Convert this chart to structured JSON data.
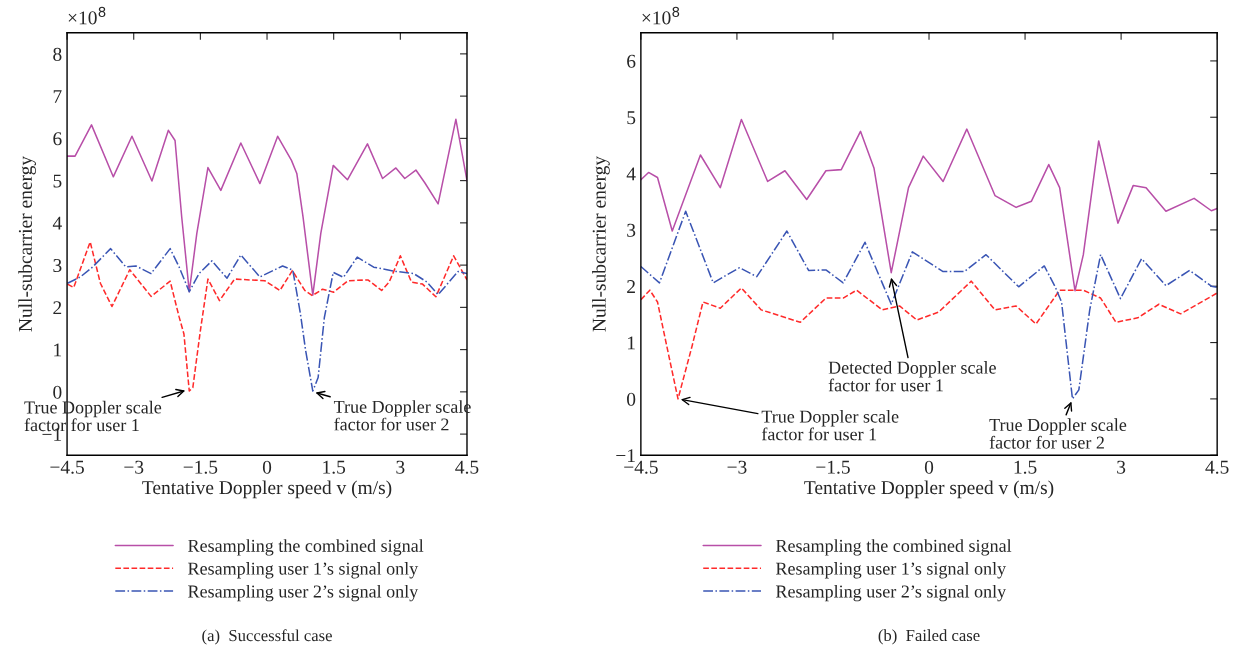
{
  "chart_data": [
    {
      "type": "line",
      "xlabel": "Tentative Doppler speed v (m/s)",
      "ylabel": "Null-subcarrier energy",
      "xlim": [
        -4.5,
        4.5
      ],
      "xticks": [
        -4.5,
        -3,
        -1.5,
        0,
        1.5,
        3,
        4.5
      ],
      "ylim": [
        -1.5,
        8.5
      ],
      "yticks": [
        -1,
        0,
        1,
        2,
        3,
        4,
        5,
        6,
        7,
        8
      ],
      "legend": "bottom",
      "grid": false,
      "annotations": [
        "×10$^{8}$",
        {
          "text": "True Doppler scale\nfactor for user 1",
          "x": -1.78,
          "y": 0.05
        },
        {
          "text": "True Doppler scale\nfactor for user 2",
          "x": 1.03,
          "y": 0.0
        },
        "(a)  Successful case"
      ],
      "series": [
        {
          "name": "Resampling the combined signal",
          "color": "#b84fa8",
          "line_style": "solid",
          "x": [
            -4.49,
            -4.32,
            -3.95,
            -3.46,
            -3.04,
            -2.59,
            -2.22,
            -2.07,
            -1.92,
            -1.75,
            -1.58,
            -1.33,
            -1.04,
            -0.59,
            -0.16,
            0.24,
            0.55,
            0.67,
            0.81,
            1.03,
            1.21,
            1.49,
            1.81,
            2.26,
            2.6,
            2.9,
            3.1,
            3.35,
            3.55,
            3.85,
            4.25,
            4.5
          ],
          "values": [
            5.58,
            5.58,
            6.32,
            5.09,
            6.05,
            4.99,
            6.19,
            5.95,
            4.14,
            2.37,
            3.75,
            5.31,
            4.77,
            5.89,
            4.93,
            6.05,
            5.48,
            5.17,
            4.14,
            2.29,
            3.75,
            5.36,
            5.02,
            5.87,
            5.05,
            5.3,
            5.05,
            5.25,
            4.95,
            4.45,
            6.45,
            5.0
          ]
        },
        {
          "name": "Resampling user 1’s signal only",
          "color": "#ff2a2a",
          "line_style": "dashed",
          "x": [
            -4.49,
            -4.35,
            -3.98,
            -3.75,
            -3.49,
            -3.09,
            -2.61,
            -2.18,
            -1.98,
            -1.87,
            -1.75,
            -1.67,
            -1.5,
            -1.33,
            -1.07,
            -0.73,
            -0.05,
            0.29,
            0.57,
            0.85,
            1.02,
            1.25,
            1.5,
            1.82,
            2.27,
            2.58,
            2.75,
            3.0,
            3.25,
            3.5,
            3.8,
            4.2,
            4.5
          ],
          "values": [
            2.55,
            2.47,
            3.55,
            2.57,
            2.02,
            2.89,
            2.26,
            2.62,
            1.78,
            1.37,
            0.02,
            0.1,
            1.45,
            2.67,
            2.16,
            2.67,
            2.63,
            2.4,
            2.87,
            2.4,
            2.28,
            2.43,
            2.36,
            2.63,
            2.65,
            2.4,
            2.6,
            3.22,
            2.6,
            2.55,
            2.25,
            3.22,
            2.65
          ]
        },
        {
          "name": "Resampling user 2’s signal only",
          "color": "#3a55b4",
          "line_style": "dashdot",
          "x": [
            -4.49,
            -4.2,
            -3.92,
            -3.52,
            -3.18,
            -2.95,
            -2.61,
            -2.18,
            -1.98,
            -1.75,
            -1.53,
            -1.24,
            -0.9,
            -0.59,
            -0.16,
            0.35,
            0.58,
            0.75,
            0.87,
            1.03,
            1.15,
            1.29,
            1.49,
            1.72,
            2.03,
            2.4,
            2.9,
            3.3,
            3.6,
            3.85,
            4.3,
            4.5
          ],
          "values": [
            2.57,
            2.72,
            2.96,
            3.39,
            2.96,
            2.98,
            2.8,
            3.39,
            2.96,
            2.37,
            2.8,
            3.1,
            2.69,
            3.24,
            2.72,
            2.98,
            2.88,
            1.86,
            0.97,
            0.02,
            0.34,
            1.76,
            2.83,
            2.71,
            3.19,
            2.95,
            2.85,
            2.8,
            2.6,
            2.3,
            2.85,
            2.8
          ]
        }
      ]
    },
    {
      "type": "line",
      "xlabel": "Tentative Doppler speed v (m/s)",
      "ylabel": "Null-subcarrier energy",
      "xlim": [
        -4.5,
        4.5
      ],
      "xticks": [
        -4.5,
        -3,
        -1.5,
        0,
        1.5,
        3,
        4.5
      ],
      "ylim": [
        -1,
        6.5
      ],
      "yticks": [
        -1,
        0,
        1,
        2,
        3,
        4,
        5,
        6
      ],
      "legend": "bottom",
      "grid": false,
      "annotations": [
        "×10$^{8}$",
        {
          "text": "True Doppler scale\nfactor for user 1",
          "x": -3.92,
          "y": 0.0
        },
        {
          "text": "True Doppler scale\nfactor for user 2",
          "x": 2.24,
          "y": 0.0
        },
        {
          "text": "Detected Doppler scale\nfactor for user 1",
          "x": -0.6,
          "y": 2.2
        },
        "(b)  Failed case"
      ],
      "series": [
        {
          "name": "Resampling the combined signal",
          "color": "#b84fa8",
          "line_style": "solid",
          "x": [
            -4.5,
            -4.38,
            -4.24,
            -4.01,
            -3.57,
            -3.26,
            -2.93,
            -2.52,
            -2.25,
            -1.91,
            -1.61,
            -1.37,
            -1.07,
            -0.86,
            -0.59,
            -0.32,
            -0.09,
            0.22,
            0.59,
            1.03,
            1.36,
            1.6,
            1.87,
            2.04,
            2.28,
            2.41,
            2.65,
            2.95,
            3.19,
            3.39,
            3.7,
            4.14,
            4.41,
            4.5
          ],
          "values": [
            3.89,
            4.02,
            3.93,
            2.98,
            4.33,
            3.75,
            4.96,
            3.86,
            4.05,
            3.54,
            4.05,
            4.07,
            4.75,
            4.1,
            2.24,
            3.75,
            4.31,
            3.86,
            4.79,
            3.61,
            3.4,
            3.51,
            4.16,
            3.75,
            1.92,
            2.56,
            4.58,
            3.12,
            3.79,
            3.75,
            3.33,
            3.56,
            3.34,
            3.38
          ]
        },
        {
          "name": "Resampling user 1’s signal only",
          "color": "#ff2a2a",
          "line_style": "dashed",
          "x": [
            -4.5,
            -4.36,
            -4.24,
            -4.07,
            -3.92,
            -3.7,
            -3.53,
            -3.26,
            -2.93,
            -2.62,
            -2.01,
            -1.61,
            -1.34,
            -1.13,
            -0.73,
            -0.46,
            -0.19,
            0.15,
            0.66,
            1.03,
            1.36,
            1.67,
            2.04,
            2.41,
            2.68,
            2.92,
            3.26,
            3.59,
            3.93,
            4.5
          ],
          "values": [
            1.76,
            1.93,
            1.72,
            0.8,
            0.0,
            0.94,
            1.72,
            1.61,
            1.97,
            1.58,
            1.36,
            1.79,
            1.79,
            1.93,
            1.58,
            1.65,
            1.4,
            1.54,
            2.09,
            1.58,
            1.65,
            1.33,
            1.93,
            1.93,
            1.79,
            1.36,
            1.44,
            1.68,
            1.51,
            1.88
          ]
        },
        {
          "name": "Resampling user 2’s signal only",
          "color": "#3a55b4",
          "line_style": "dashdot",
          "x": [
            -4.5,
            -4.21,
            -3.8,
            -3.37,
            -2.96,
            -2.69,
            -2.22,
            -1.88,
            -1.61,
            -1.34,
            -1.0,
            -0.59,
            -0.26,
            0.22,
            0.55,
            0.89,
            1.4,
            1.8,
            1.97,
            2.07,
            2.24,
            2.34,
            2.51,
            2.68,
            2.99,
            3.32,
            3.7,
            4.07,
            4.41,
            4.5
          ],
          "values": [
            2.35,
            2.06,
            3.33,
            2.06,
            2.33,
            2.17,
            2.98,
            2.28,
            2.29,
            2.06,
            2.78,
            1.68,
            2.61,
            2.26,
            2.26,
            2.56,
            1.99,
            2.36,
            1.99,
            1.72,
            0.0,
            0.16,
            1.58,
            2.56,
            1.78,
            2.49,
            2.01,
            2.28,
            2.0,
            1.98
          ]
        }
      ]
    }
  ]
}
